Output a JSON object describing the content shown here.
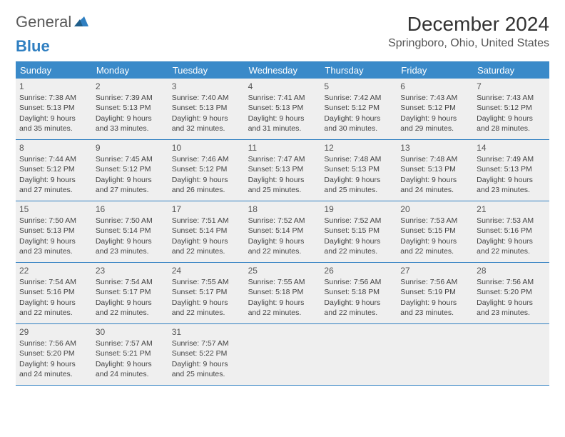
{
  "logo": {
    "text1": "General",
    "text2": "Blue"
  },
  "title": "December 2024",
  "location": "Springboro, Ohio, United States",
  "colors": {
    "header_bg": "#3a8ac9",
    "header_text": "#ffffff",
    "cell_bg": "#efefef",
    "border": "#2f7fc1",
    "logo_gray": "#5a5a5a",
    "logo_blue": "#2f7fc1"
  },
  "weekdays": [
    "Sunday",
    "Monday",
    "Tuesday",
    "Wednesday",
    "Thursday",
    "Friday",
    "Saturday"
  ],
  "days": [
    {
      "n": "1",
      "sr": "7:38 AM",
      "ss": "5:13 PM",
      "dl": "9 hours and 35 minutes."
    },
    {
      "n": "2",
      "sr": "7:39 AM",
      "ss": "5:13 PM",
      "dl": "9 hours and 33 minutes."
    },
    {
      "n": "3",
      "sr": "7:40 AM",
      "ss": "5:13 PM",
      "dl": "9 hours and 32 minutes."
    },
    {
      "n": "4",
      "sr": "7:41 AM",
      "ss": "5:13 PM",
      "dl": "9 hours and 31 minutes."
    },
    {
      "n": "5",
      "sr": "7:42 AM",
      "ss": "5:12 PM",
      "dl": "9 hours and 30 minutes."
    },
    {
      "n": "6",
      "sr": "7:43 AM",
      "ss": "5:12 PM",
      "dl": "9 hours and 29 minutes."
    },
    {
      "n": "7",
      "sr": "7:43 AM",
      "ss": "5:12 PM",
      "dl": "9 hours and 28 minutes."
    },
    {
      "n": "8",
      "sr": "7:44 AM",
      "ss": "5:12 PM",
      "dl": "9 hours and 27 minutes."
    },
    {
      "n": "9",
      "sr": "7:45 AM",
      "ss": "5:12 PM",
      "dl": "9 hours and 27 minutes."
    },
    {
      "n": "10",
      "sr": "7:46 AM",
      "ss": "5:12 PM",
      "dl": "9 hours and 26 minutes."
    },
    {
      "n": "11",
      "sr": "7:47 AM",
      "ss": "5:13 PM",
      "dl": "9 hours and 25 minutes."
    },
    {
      "n": "12",
      "sr": "7:48 AM",
      "ss": "5:13 PM",
      "dl": "9 hours and 25 minutes."
    },
    {
      "n": "13",
      "sr": "7:48 AM",
      "ss": "5:13 PM",
      "dl": "9 hours and 24 minutes."
    },
    {
      "n": "14",
      "sr": "7:49 AM",
      "ss": "5:13 PM",
      "dl": "9 hours and 23 minutes."
    },
    {
      "n": "15",
      "sr": "7:50 AM",
      "ss": "5:13 PM",
      "dl": "9 hours and 23 minutes."
    },
    {
      "n": "16",
      "sr": "7:50 AM",
      "ss": "5:14 PM",
      "dl": "9 hours and 23 minutes."
    },
    {
      "n": "17",
      "sr": "7:51 AM",
      "ss": "5:14 PM",
      "dl": "9 hours and 22 minutes."
    },
    {
      "n": "18",
      "sr": "7:52 AM",
      "ss": "5:14 PM",
      "dl": "9 hours and 22 minutes."
    },
    {
      "n": "19",
      "sr": "7:52 AM",
      "ss": "5:15 PM",
      "dl": "9 hours and 22 minutes."
    },
    {
      "n": "20",
      "sr": "7:53 AM",
      "ss": "5:15 PM",
      "dl": "9 hours and 22 minutes."
    },
    {
      "n": "21",
      "sr": "7:53 AM",
      "ss": "5:16 PM",
      "dl": "9 hours and 22 minutes."
    },
    {
      "n": "22",
      "sr": "7:54 AM",
      "ss": "5:16 PM",
      "dl": "9 hours and 22 minutes."
    },
    {
      "n": "23",
      "sr": "7:54 AM",
      "ss": "5:17 PM",
      "dl": "9 hours and 22 minutes."
    },
    {
      "n": "24",
      "sr": "7:55 AM",
      "ss": "5:17 PM",
      "dl": "9 hours and 22 minutes."
    },
    {
      "n": "25",
      "sr": "7:55 AM",
      "ss": "5:18 PM",
      "dl": "9 hours and 22 minutes."
    },
    {
      "n": "26",
      "sr": "7:56 AM",
      "ss": "5:18 PM",
      "dl": "9 hours and 22 minutes."
    },
    {
      "n": "27",
      "sr": "7:56 AM",
      "ss": "5:19 PM",
      "dl": "9 hours and 23 minutes."
    },
    {
      "n": "28",
      "sr": "7:56 AM",
      "ss": "5:20 PM",
      "dl": "9 hours and 23 minutes."
    },
    {
      "n": "29",
      "sr": "7:56 AM",
      "ss": "5:20 PM",
      "dl": "9 hours and 24 minutes."
    },
    {
      "n": "30",
      "sr": "7:57 AM",
      "ss": "5:21 PM",
      "dl": "9 hours and 24 minutes."
    },
    {
      "n": "31",
      "sr": "7:57 AM",
      "ss": "5:22 PM",
      "dl": "9 hours and 25 minutes."
    }
  ],
  "labels": {
    "sunrise": "Sunrise: ",
    "sunset": "Sunset: ",
    "daylight": "Daylight: "
  },
  "trailing_empty": 4
}
